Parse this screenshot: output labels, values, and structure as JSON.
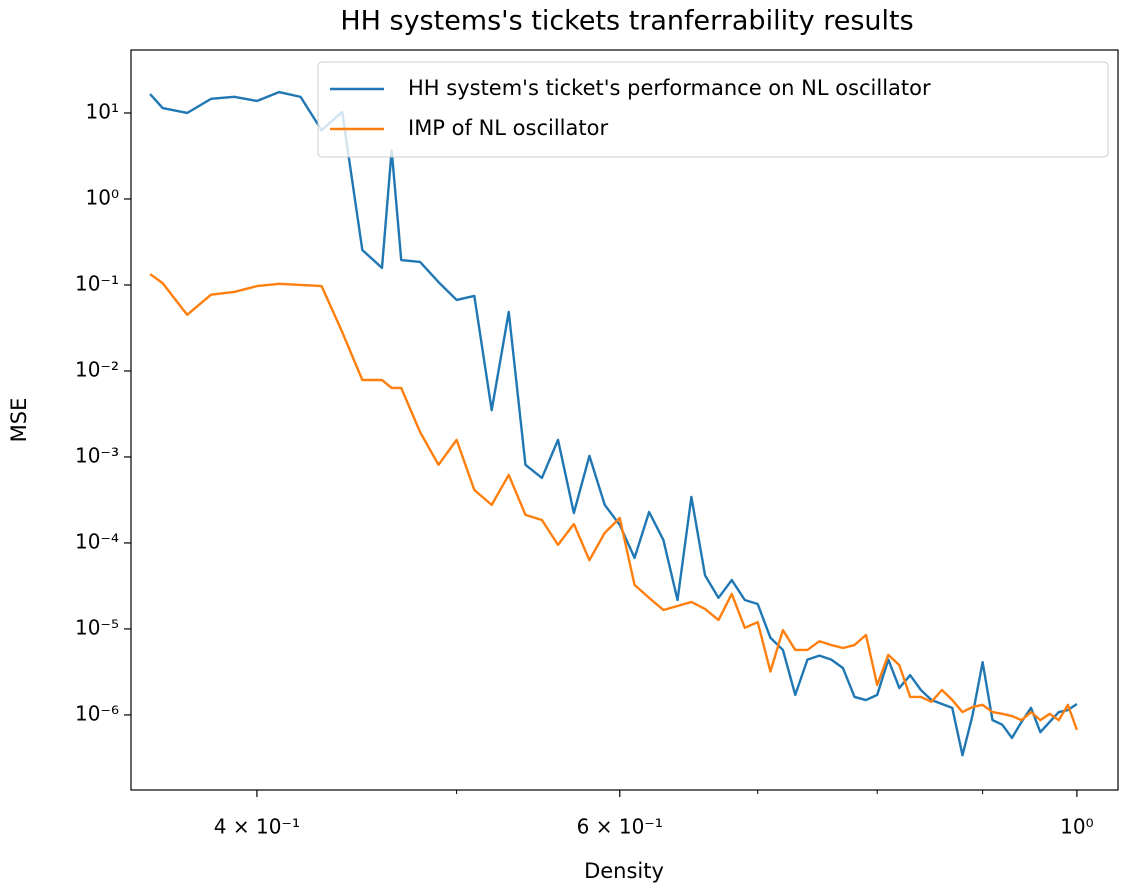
{
  "chart_data": {
    "type": "line",
    "title": "HH systems's tickets tranferrability results",
    "x_label": "Density",
    "y_label": "MSE",
    "log_x": true,
    "log_y": true,
    "grid": false,
    "legend": "upper right",
    "xlim": [
      0.3475,
      1.047
    ],
    "ylim": [
      1.34e-07,
      54
    ],
    "xticks": [
      {
        "value": 0.4,
        "label": "4 × 10⁻¹"
      },
      {
        "value": 0.6,
        "label": "6 × 10⁻¹"
      },
      {
        "value": 1,
        "label": "10⁰"
      }
    ],
    "xminorticks": [
      0.5,
      0.7,
      0.8,
      0.9
    ],
    "yticks": [
      {
        "value": 1e-06,
        "label": "10⁻⁶"
      },
      {
        "value": 1e-05,
        "label": "10⁻⁵"
      },
      {
        "value": 0.0001,
        "label": "10⁻⁴"
      },
      {
        "value": 0.001,
        "label": "10⁻³"
      },
      {
        "value": 0.01,
        "label": "10⁻²"
      },
      {
        "value": 0.1,
        "label": "10⁻¹"
      },
      {
        "value": 1,
        "label": "10⁰"
      },
      {
        "value": 10,
        "label": "10¹"
      }
    ],
    "x": [
      0.355,
      0.36,
      0.37,
      0.38,
      0.39,
      0.4,
      0.41,
      0.42,
      0.43,
      0.44,
      0.45,
      0.46,
      0.465,
      0.47,
      0.48,
      0.49,
      0.5,
      0.51,
      0.52,
      0.53,
      0.54,
      0.55,
      0.56,
      0.57,
      0.58,
      0.59,
      0.6,
      0.61,
      0.62,
      0.63,
      0.64,
      0.65,
      0.66,
      0.67,
      0.68,
      0.69,
      0.7,
      0.71,
      0.72,
      0.73,
      0.74,
      0.75,
      0.76,
      0.77,
      0.78,
      0.79,
      0.8,
      0.81,
      0.82,
      0.83,
      0.84,
      0.85,
      0.86,
      0.87,
      0.88,
      0.89,
      0.9,
      0.91,
      0.92,
      0.93,
      0.94,
      0.95,
      0.96,
      0.97,
      0.98,
      0.99,
      1.0
    ],
    "series": [
      {
        "name": "HH system's ticket's performance on NL oscillator",
        "color": "#1f77b4",
        "values": [
          16.6,
          11.4,
          10,
          14.6,
          15.4,
          13.8,
          17.5,
          15.4,
          6.3,
          10.3,
          0.255,
          0.158,
          3.7,
          0.195,
          0.185,
          0.108,
          0.067,
          0.0745,
          0.0035,
          0.0485,
          0.00081,
          0.00057,
          0.00158,
          0.000223,
          0.00103,
          0.000277,
          0.000162,
          6.7e-05,
          0.000229,
          0.000108,
          2.17e-05,
          0.000343,
          4.2e-05,
          2.3e-05,
          3.7e-05,
          2.17e-05,
          1.95e-05,
          7.9e-06,
          5.7e-06,
          1.71e-06,
          4.4e-06,
          4.9e-06,
          4.4e-06,
          3.5e-06,
          1.62e-06,
          1.49e-06,
          1.71e-06,
          4.4e-06,
          2.06e-06,
          2.9e-06,
          1.95e-06,
          1.49e-06,
          1.34e-06,
          1.21e-06,
          3.4e-07,
          1e-06,
          4.1e-06,
          8.7e-07,
          7.7e-07,
          5.4e-07,
          8.3e-07,
          1.21e-06,
          6.3e-07,
          8.3e-07,
          1.08e-06,
          1.14e-06,
          1.34e-06
        ]
      },
      {
        "name": "IMP of NL oscillator",
        "color": "#ff7f0e",
        "values": [
          0.134,
          0.105,
          0.045,
          0.077,
          0.083,
          0.097,
          0.103,
          0.1,
          0.097,
          0.0284,
          0.00785,
          0.00785,
          0.00634,
          0.00634,
          0.00195,
          0.00081,
          0.00158,
          0.000413,
          0.000277,
          0.000618,
          0.000212,
          0.000185,
          9.5e-05,
          0.000166,
          6.3e-05,
          0.000131,
          0.000195,
          3.25e-05,
          2.3e-05,
          1.66e-05,
          1.85e-05,
          2.06e-05,
          1.71e-05,
          1.27e-05,
          2.55e-05,
          1.03e-05,
          1.2e-05,
          3.2e-06,
          9.7e-06,
          5.7e-06,
          5.7e-06,
          7.2e-06,
          6.5e-06,
          6e-06,
          6.5e-06,
          8.5e-06,
          2.23e-06,
          5e-06,
          3.8e-06,
          1.62e-06,
          1.62e-06,
          1.42e-06,
          1.95e-06,
          1.49e-06,
          1.08e-06,
          1.24e-06,
          1.31e-06,
          1.08e-06,
          1.03e-06,
          9.7e-07,
          8.7e-07,
          1.08e-06,
          8.7e-07,
          1.03e-06,
          8.7e-07,
          1.31e-06,
          6.7e-07
        ]
      }
    ]
  }
}
